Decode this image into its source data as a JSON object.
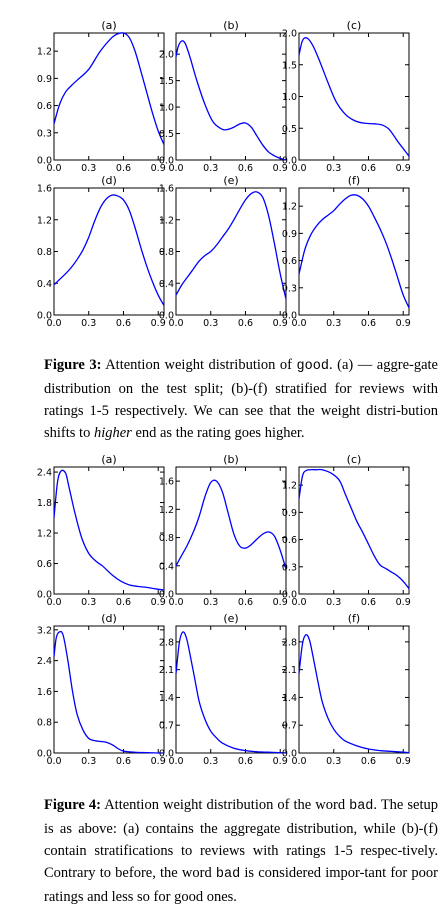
{
  "figure3": {
    "caption_label": "Figure 3:",
    "caption_parts": [
      "Attention weight distribution of ",
      "good",
      ". (a) — aggre-gate distribution on the test split; (b)-(f) stratified for reviews with ratings 1-5 respectively. We can see that the weight distri-bution shifts to ",
      "higher",
      " end as the rating goes higher."
    ]
  },
  "figure4": {
    "caption_label": "Figure 4:",
    "caption_parts": [
      "Attention weight distribution of the word ",
      "bad",
      ". The setup is as above: (a) contains the aggregate distribution, while (b)-(f) contain stratifications to reviews with ratings 1-5 respec-tively. Contrary to before, the word ",
      "bad",
      " is considered impor-tant for poor ratings and less so for good ones."
    ]
  },
  "chart_data": [
    {
      "type": "line",
      "title": "(a)",
      "xlim": [
        0,
        0.95
      ],
      "ylim": [
        0,
        1.4
      ],
      "xticks": [
        "0.0",
        "0.3",
        "0.6",
        "0.9"
      ],
      "yticks": [
        "0.0",
        "0.3",
        "0.6",
        "0.9",
        "1.2"
      ],
      "x": [
        0,
        0.05,
        0.1,
        0.15,
        0.2,
        0.3,
        0.4,
        0.5,
        0.55,
        0.6,
        0.65,
        0.7,
        0.75,
        0.8,
        0.85,
        0.9,
        0.95
      ],
      "y": [
        0.4,
        0.62,
        0.75,
        0.82,
        0.88,
        1.0,
        1.2,
        1.35,
        1.39,
        1.4,
        1.35,
        1.2,
        0.98,
        0.75,
        0.52,
        0.32,
        0.17
      ],
      "line_color": "#0000ff"
    },
    {
      "type": "line",
      "title": "(b)",
      "xlim": [
        0,
        0.95
      ],
      "ylim": [
        0,
        2.4
      ],
      "xticks": [
        "0.0",
        "0.3",
        "0.6",
        "0.9"
      ],
      "yticks": [
        "0.0",
        "0.5",
        "1.0",
        "1.5",
        "2.0"
      ],
      "x": [
        0,
        0.02,
        0.05,
        0.08,
        0.12,
        0.18,
        0.25,
        0.32,
        0.4,
        0.45,
        0.5,
        0.55,
        0.6,
        0.65,
        0.7,
        0.75,
        0.8,
        0.85,
        0.9,
        0.95
      ],
      "y": [
        1.95,
        2.15,
        2.25,
        2.2,
        1.95,
        1.5,
        1.05,
        0.72,
        0.58,
        0.58,
        0.62,
        0.68,
        0.7,
        0.62,
        0.45,
        0.28,
        0.15,
        0.08,
        0.03,
        0.0
      ],
      "line_color": "#0000ff"
    },
    {
      "type": "line",
      "title": "(c)",
      "xlim": [
        0,
        0.95
      ],
      "ylim": [
        0,
        2.0
      ],
      "xticks": [
        "0.0",
        "0.3",
        "0.6",
        "0.9"
      ],
      "yticks": [
        "0.0",
        "0.5",
        "1.0",
        "1.5",
        "2.0"
      ],
      "x": [
        0,
        0.03,
        0.07,
        0.12,
        0.18,
        0.25,
        0.32,
        0.4,
        0.48,
        0.56,
        0.65,
        0.72,
        0.78,
        0.85,
        0.9,
        0.95
      ],
      "y": [
        1.65,
        1.88,
        1.92,
        1.8,
        1.55,
        1.22,
        0.92,
        0.72,
        0.62,
        0.58,
        0.57,
        0.55,
        0.48,
        0.3,
        0.18,
        0.06
      ],
      "line_color": "#0000ff"
    },
    {
      "type": "line",
      "title": "(d)",
      "xlim": [
        0,
        0.95
      ],
      "ylim": [
        0,
        1.6
      ],
      "xticks": [
        "0.0",
        "0.3",
        "0.6",
        "0.9"
      ],
      "yticks": [
        "0.0",
        "0.4",
        "0.8",
        "1.2",
        "1.6"
      ],
      "x": [
        0,
        0.05,
        0.1,
        0.15,
        0.2,
        0.25,
        0.3,
        0.35,
        0.4,
        0.45,
        0.5,
        0.55,
        0.6,
        0.65,
        0.7,
        0.75,
        0.8,
        0.85,
        0.9,
        0.95
      ],
      "y": [
        0.38,
        0.45,
        0.52,
        0.6,
        0.7,
        0.82,
        0.98,
        1.18,
        1.35,
        1.46,
        1.51,
        1.5,
        1.45,
        1.32,
        1.1,
        0.85,
        0.62,
        0.42,
        0.25,
        0.12
      ],
      "line_color": "#0000ff"
    },
    {
      "type": "line",
      "title": "(e)",
      "xlim": [
        0,
        0.95
      ],
      "ylim": [
        0,
        1.6
      ],
      "xticks": [
        "0.0",
        "0.3",
        "0.6",
        "0.9"
      ],
      "yticks": [
        "0.0",
        "0.4",
        "0.8",
        "1.2",
        "1.6"
      ],
      "x": [
        0,
        0.05,
        0.1,
        0.15,
        0.2,
        0.25,
        0.3,
        0.35,
        0.4,
        0.45,
        0.5,
        0.55,
        0.6,
        0.65,
        0.7,
        0.75,
        0.8,
        0.85,
        0.9,
        0.95
      ],
      "y": [
        0.25,
        0.38,
        0.48,
        0.58,
        0.68,
        0.75,
        0.8,
        0.88,
        0.98,
        1.08,
        1.2,
        1.33,
        1.45,
        1.53,
        1.55,
        1.48,
        1.25,
        0.9,
        0.52,
        0.2
      ],
      "line_color": "#0000ff"
    },
    {
      "type": "line",
      "title": "(f)",
      "xlim": [
        0,
        0.95
      ],
      "ylim": [
        0,
        1.4
      ],
      "xticks": [
        "0.0",
        "0.3",
        "0.6",
        "0.9"
      ],
      "yticks": [
        "0.0",
        "0.3",
        "0.6",
        "0.9",
        "1.2"
      ],
      "x": [
        0,
        0.05,
        0.1,
        0.15,
        0.2,
        0.25,
        0.3,
        0.35,
        0.4,
        0.45,
        0.5,
        0.55,
        0.6,
        0.65,
        0.7,
        0.75,
        0.8,
        0.85,
        0.9,
        0.95
      ],
      "y": [
        0.45,
        0.72,
        0.88,
        0.98,
        1.05,
        1.1,
        1.15,
        1.22,
        1.28,
        1.32,
        1.32,
        1.28,
        1.2,
        1.08,
        0.95,
        0.8,
        0.62,
        0.42,
        0.22,
        0.08
      ],
      "line_color": "#0000ff"
    },
    {
      "type": "line",
      "title": "(a)",
      "xlim": [
        0,
        0.95
      ],
      "ylim": [
        0,
        2.5
      ],
      "xticks": [
        "0.0",
        "0.3",
        "0.6",
        "0.9"
      ],
      "yticks": [
        "0.0",
        "0.6",
        "1.2",
        "1.8",
        "2.4"
      ],
      "x": [
        0,
        0.03,
        0.06,
        0.1,
        0.13,
        0.18,
        0.24,
        0.3,
        0.36,
        0.42,
        0.5,
        0.58,
        0.65,
        0.72,
        0.8,
        0.88,
        0.95
      ],
      "y": [
        1.5,
        2.2,
        2.42,
        2.38,
        2.1,
        1.6,
        1.1,
        0.8,
        0.65,
        0.55,
        0.38,
        0.25,
        0.18,
        0.15,
        0.13,
        0.1,
        0.08
      ],
      "line_color": "#0000ff"
    },
    {
      "type": "line",
      "title": "(b)",
      "xlim": [
        0,
        0.95
      ],
      "ylim": [
        0,
        1.8
      ],
      "xticks": [
        "0.0",
        "0.3",
        "0.6",
        "0.9"
      ],
      "yticks": [
        "0.0",
        "0.4",
        "0.8",
        "1.2",
        "1.6"
      ],
      "x": [
        0,
        0.05,
        0.1,
        0.15,
        0.2,
        0.25,
        0.3,
        0.35,
        0.4,
        0.45,
        0.5,
        0.55,
        0.6,
        0.65,
        0.7,
        0.75,
        0.8,
        0.85,
        0.9,
        0.95
      ],
      "y": [
        0.4,
        0.55,
        0.7,
        0.88,
        1.1,
        1.38,
        1.58,
        1.6,
        1.45,
        1.15,
        0.85,
        0.68,
        0.65,
        0.7,
        0.78,
        0.85,
        0.88,
        0.82,
        0.62,
        0.35
      ],
      "line_color": "#0000ff"
    },
    {
      "type": "line",
      "title": "(c)",
      "xlim": [
        0,
        0.95
      ],
      "ylim": [
        0,
        1.4
      ],
      "xticks": [
        "0.0",
        "0.3",
        "0.6",
        "0.9"
      ],
      "yticks": [
        "0.0",
        "0.3",
        "0.6",
        "0.9",
        "1.2"
      ],
      "x": [
        0,
        0.03,
        0.06,
        0.1,
        0.15,
        0.2,
        0.28,
        0.35,
        0.4,
        0.45,
        0.5,
        0.55,
        0.6,
        0.65,
        0.7,
        0.75,
        0.8,
        0.85,
        0.9,
        0.95
      ],
      "y": [
        1.05,
        1.3,
        1.36,
        1.37,
        1.37,
        1.37,
        1.33,
        1.25,
        1.1,
        0.95,
        0.8,
        0.68,
        0.55,
        0.42,
        0.32,
        0.28,
        0.24,
        0.2,
        0.14,
        0.06
      ],
      "line_color": "#0000ff"
    },
    {
      "type": "line",
      "title": "(d)",
      "xlim": [
        0,
        0.95
      ],
      "ylim": [
        0,
        3.3
      ],
      "xticks": [
        "0.0",
        "0.3",
        "0.6",
        "0.9"
      ],
      "yticks": [
        "0.0",
        "0.8",
        "1.6",
        "2.4",
        "3.2"
      ],
      "x": [
        0,
        0.02,
        0.05,
        0.08,
        0.12,
        0.16,
        0.2,
        0.25,
        0.3,
        0.35,
        0.4,
        0.45,
        0.5,
        0.55,
        0.6,
        0.7,
        0.8,
        0.9,
        0.95
      ],
      "y": [
        2.5,
        3.0,
        3.15,
        3.05,
        2.4,
        1.6,
        1.0,
        0.6,
        0.38,
        0.32,
        0.3,
        0.28,
        0.22,
        0.12,
        0.05,
        0.02,
        0.01,
        0.0,
        0.0
      ],
      "line_color": "#0000ff"
    },
    {
      "type": "line",
      "title": "(e)",
      "xlim": [
        0,
        0.95
      ],
      "ylim": [
        0,
        3.2
      ],
      "xticks": [
        "0.0",
        "0.3",
        "0.6",
        "0.9"
      ],
      "yticks": [
        "0.0",
        "0.7",
        "1.4",
        "2.1",
        "2.8"
      ],
      "x": [
        0,
        0.03,
        0.06,
        0.09,
        0.12,
        0.16,
        0.2,
        0.25,
        0.3,
        0.35,
        0.4,
        0.5,
        0.6,
        0.7,
        0.8,
        0.9,
        0.95
      ],
      "y": [
        2.0,
        2.8,
        3.05,
        2.9,
        2.5,
        1.9,
        1.3,
        0.85,
        0.55,
        0.38,
        0.25,
        0.12,
        0.06,
        0.03,
        0.02,
        0.01,
        0.0
      ],
      "line_color": "#0000ff"
    },
    {
      "type": "line",
      "title": "(f)",
      "xlim": [
        0,
        0.95
      ],
      "ylim": [
        0,
        3.2
      ],
      "xticks": [
        "0.0",
        "0.3",
        "0.6",
        "0.9"
      ],
      "yticks": [
        "0.0",
        "0.7",
        "1.4",
        "2.1",
        "2.8"
      ],
      "x": [
        0,
        0.03,
        0.06,
        0.09,
        0.12,
        0.16,
        0.2,
        0.25,
        0.3,
        0.35,
        0.4,
        0.5,
        0.6,
        0.7,
        0.8,
        0.9,
        0.95
      ],
      "y": [
        2.0,
        2.75,
        2.98,
        2.85,
        2.45,
        1.85,
        1.3,
        0.88,
        0.6,
        0.42,
        0.3,
        0.18,
        0.1,
        0.06,
        0.04,
        0.02,
        0.01
      ],
      "line_color": "#0000ff"
    }
  ]
}
